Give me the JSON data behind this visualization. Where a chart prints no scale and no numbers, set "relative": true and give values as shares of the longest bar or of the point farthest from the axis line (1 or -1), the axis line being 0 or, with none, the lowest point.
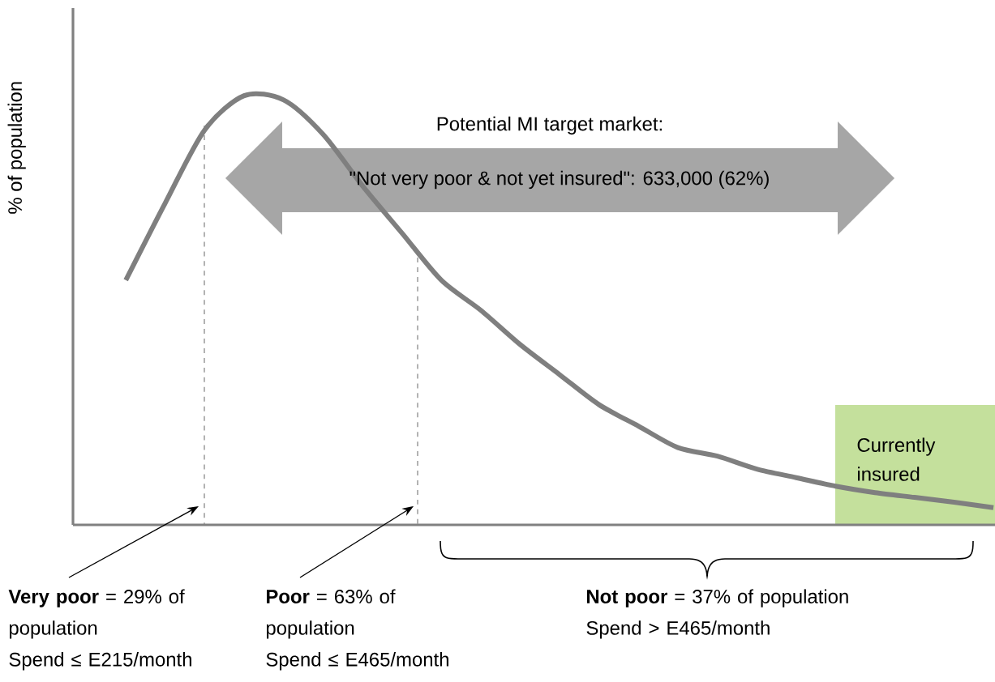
{
  "chart_data": {
    "type": "line",
    "relative": true,
    "marker": "none",
    "categories": [
      null,
      null,
      null,
      null,
      null,
      null,
      null,
      null,
      null,
      null,
      null,
      null,
      null,
      null,
      null,
      null,
      null,
      null,
      null,
      null,
      null,
      null,
      null
    ],
    "series": [
      {
        "color": "#7f7f7f",
        "values": [
          0.57,
          0.75,
          0.92,
          1,
          0.99,
          0.91,
          0.79,
          0.68,
          0.57,
          0.5,
          0.42,
          0.35,
          0.28,
          0.23,
          0.18,
          0.16,
          0.13,
          0.11,
          0.09,
          0.075,
          0.064,
          0.053,
          0.04
        ]
      }
    ],
    "ylabel": "% of population",
    "annotations": [
      "Potential MI target market:",
      "\"Not very poor & not yet insured\": 633,000 (62%)",
      "**Very poor** =  29% of population",
      "Spend ≤  E215/month",
      "**Poor** =  63% of population",
      "Spend ≤  E465/month",
      "**Not poor** =  37% of population",
      "Spend >  E465/month",
      "Currently insured"
    ]
  }
}
